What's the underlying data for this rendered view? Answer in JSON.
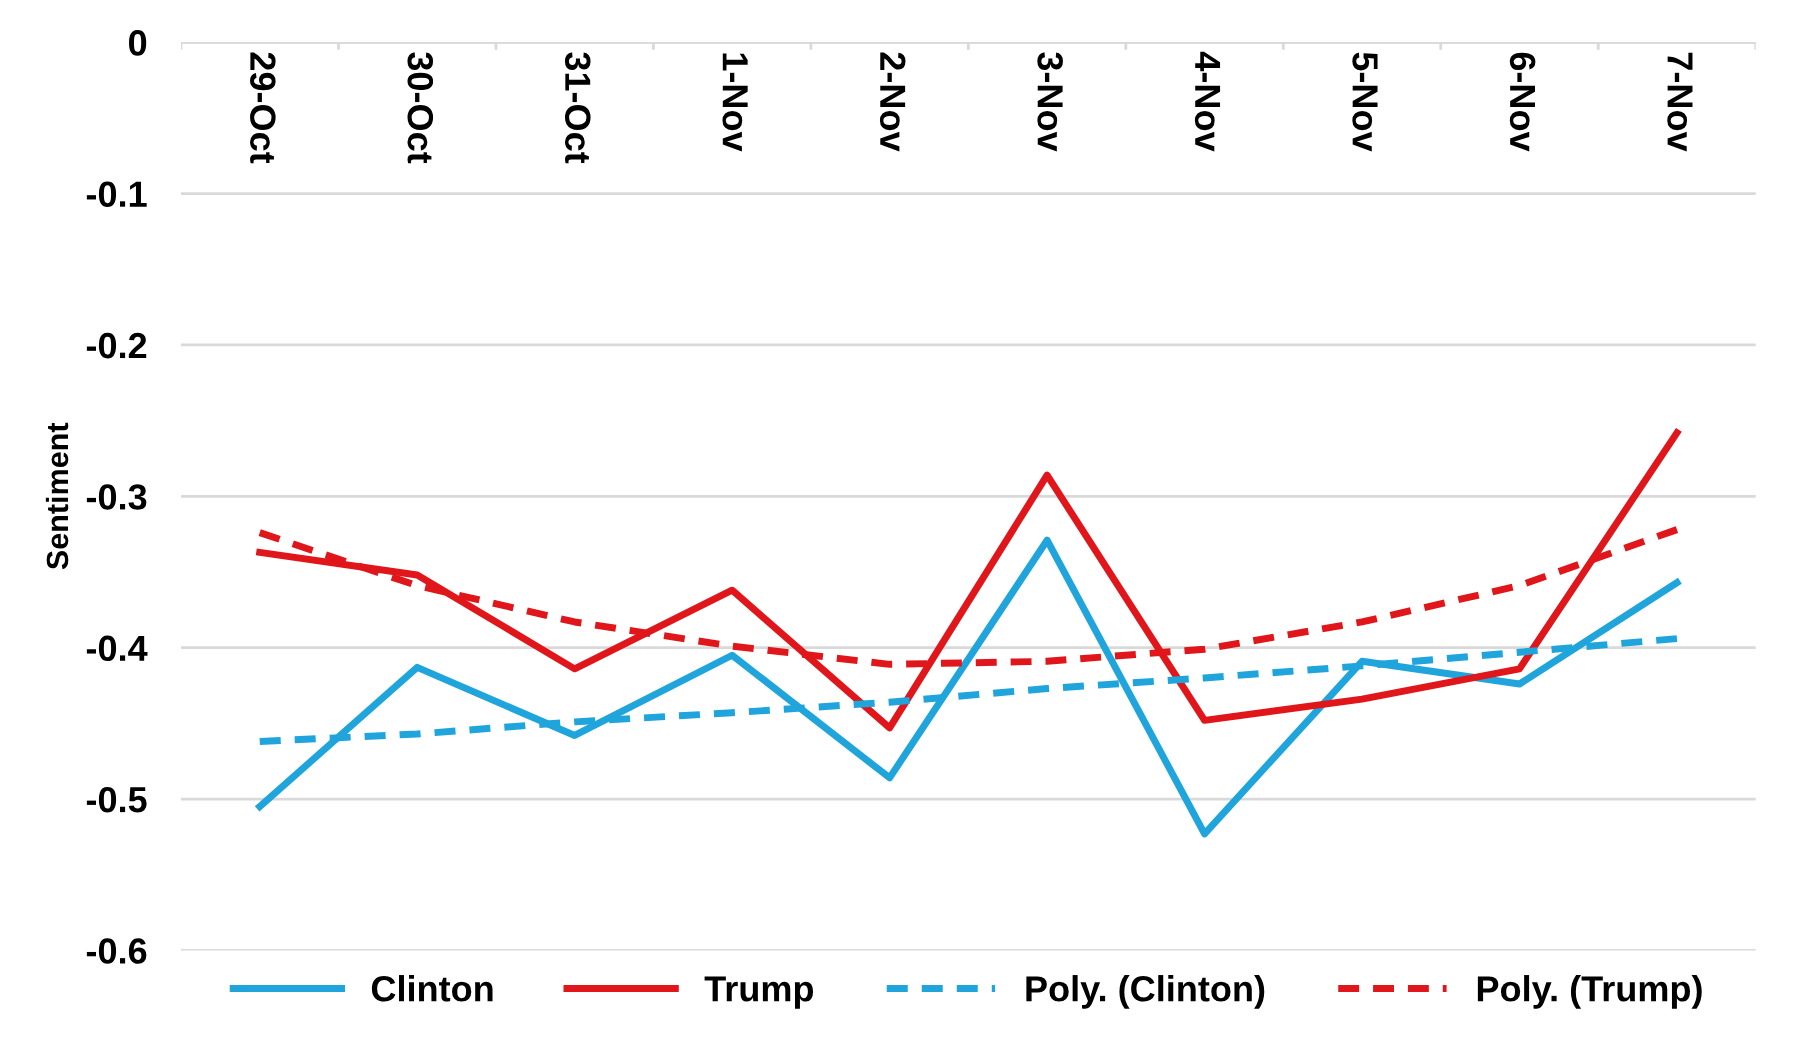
{
  "chart_data": {
    "type": "line",
    "ylabel": "Sentiment",
    "categories": [
      "29-Oct",
      "30-Oct",
      "31-Oct",
      "1-Nov",
      "2-Nov",
      "3-Nov",
      "4-Nov",
      "5-Nov",
      "6-Nov",
      "7-Nov"
    ],
    "series": [
      {
        "name": "Clinton",
        "color": "#1fa5dc",
        "values": [
          -0.505,
          -0.413,
          -0.458,
          -0.405,
          -0.486,
          -0.329,
          -0.523,
          -0.409,
          -0.424,
          -0.357
        ]
      },
      {
        "name": "Trump",
        "color": "#e0161b",
        "values": [
          -0.337,
          -0.352,
          -0.414,
          -0.362,
          -0.453,
          -0.286,
          -0.448,
          -0.434,
          -0.414,
          -0.258
        ]
      },
      {
        "name": "Poly. (Clinton)",
        "color": "#1fa5dc",
        "line_style": "dashed",
        "values": [
          -0.462,
          -0.457,
          -0.449,
          -0.443,
          -0.436,
          -0.427,
          -0.42,
          -0.412,
          -0.403,
          -0.394
        ]
      },
      {
        "name": "Poly. (Trump)",
        "color": "#e0161b",
        "line_style": "dashed",
        "values": [
          -0.324,
          -0.359,
          -0.383,
          -0.399,
          -0.411,
          -0.409,
          -0.401,
          -0.383,
          -0.359,
          -0.322
        ]
      }
    ],
    "ylim": [
      -0.6,
      0
    ],
    "yticks": [
      -0.6,
      -0.5,
      -0.4,
      -0.3,
      -0.2,
      -0.1,
      0
    ],
    "grid": "y",
    "legend": "bottom",
    "marker": "none",
    "line_style": "solid"
  }
}
